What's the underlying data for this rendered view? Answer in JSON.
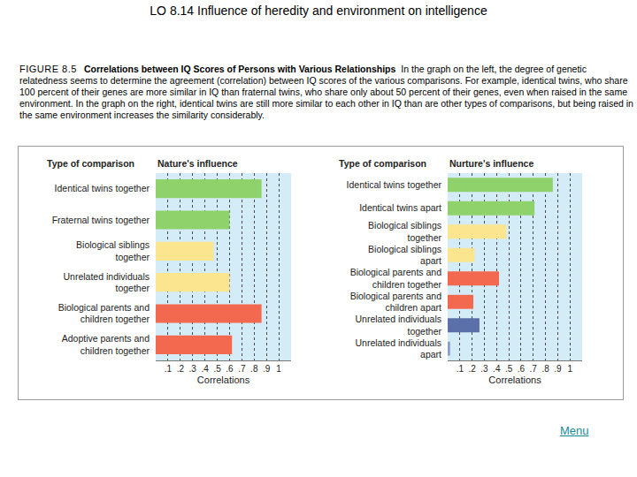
{
  "header": "LO 8.14  Influence of heredity and environment on intelligence",
  "figure": {
    "label": "FIGURE 8.5",
    "title": "Correlations between IQ Scores of Persons with Various Relationships",
    "text": "In the graph on the left, the degree of genetic relatedness seems to determine the agreement (correlation) between IQ scores of the various comparisons. For example, identical twins, who share 100 percent of their genes are more similar in IQ than fraternal twins, who share only about 50 percent of their genes, even when raised in the same environment. In the graph on the right, identical twins are still more similar to each other in IQ than are other types of comparisons, but being raised in the same environment increases the similarity considerably."
  },
  "menu": "Menu",
  "chart_data": [
    {
      "type": "bar",
      "orientation": "horizontal",
      "title": "Nature's influence",
      "ylabel": "Type of comparison",
      "xlabel": "Correlations",
      "categories": [
        "Identical twins together",
        "Fraternal twins together",
        "Biological siblings together",
        "Unrelated individuals together",
        "Biological parents and children together",
        "Adoptive parents and children together"
      ],
      "values": [
        0.86,
        0.6,
        0.47,
        0.6,
        0.86,
        0.62
      ],
      "colors": [
        "#8fd16a",
        "#8fd16a",
        "#fbe58e",
        "#fbe58e",
        "#f2694f",
        "#f2694f"
      ],
      "xlim": [
        0,
        1.1
      ],
      "xticks": [
        {
          "value": 0.1,
          "label": ".1"
        },
        {
          "value": 0.2,
          "label": ".2"
        },
        {
          "value": 0.3,
          "label": ".3"
        },
        {
          "value": 0.4,
          "label": ".4"
        },
        {
          "value": 0.5,
          "label": ".5"
        },
        {
          "value": 0.6,
          "label": ".6"
        },
        {
          "value": 0.7,
          "label": ".7"
        },
        {
          "value": 0.8,
          "label": ".8"
        },
        {
          "value": 0.9,
          "label": ".9"
        },
        1
      ],
      "grid": true
    },
    {
      "type": "bar",
      "orientation": "horizontal",
      "title": "Nurture's influence",
      "ylabel": "Type of comparison",
      "xlabel": "Correlations",
      "categories": [
        "Identical twins together",
        "Identical twins apart",
        "Biological siblings together",
        "Biological siblings apart",
        "Biological parents and children together",
        "Biological parents and children apart",
        "Unrelated individuals together",
        "Unrelated individuals apart"
      ],
      "values": [
        0.86,
        0.71,
        0.48,
        0.22,
        0.42,
        0.21,
        0.26,
        0.02
      ],
      "colors": [
        "#8fd16a",
        "#8fd16a",
        "#fbe58e",
        "#fbe58e",
        "#f2694f",
        "#f2694f",
        "#5b6fa8",
        "#8a9cc8"
      ],
      "xlim": [
        0,
        1.1
      ],
      "xticks": [
        {
          "value": 0.1,
          "label": ".1"
        },
        {
          "value": 0.2,
          "label": ".2"
        },
        {
          "value": 0.3,
          "label": ".3"
        },
        {
          "value": 0.4,
          "label": ".4"
        },
        {
          "value": 0.5,
          "label": ".5"
        },
        {
          "value": 0.6,
          "label": ".6"
        },
        {
          "value": 0.7,
          "label": ".7"
        },
        {
          "value": 0.8,
          "label": ".8"
        },
        {
          "value": 0.9,
          "label": ".9"
        },
        1
      ],
      "grid": true
    }
  ]
}
